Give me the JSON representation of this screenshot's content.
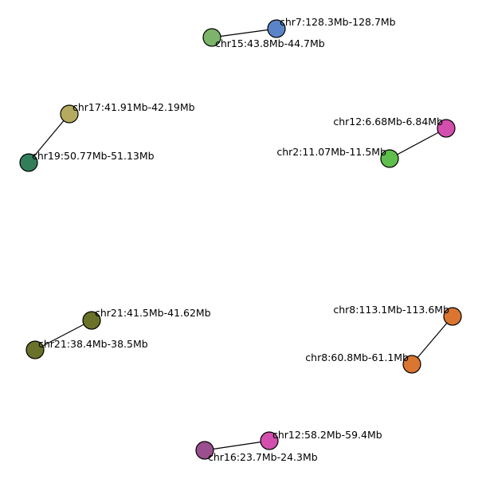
{
  "nodes": [
    {
      "id": "n1",
      "label": "chr7:128.3Mb-128.7Mb",
      "color": "#5b84c8"
    },
    {
      "id": "n2",
      "label": "chr15:43.8Mb-44.7Mb",
      "color": "#7cb46a"
    },
    {
      "id": "n3",
      "label": "chr17:41.91Mb-42.19Mb",
      "color": "#b5ab60"
    },
    {
      "id": "n4",
      "label": "chr19:50.77Mb-51.13Mb",
      "color": "#337e5a"
    },
    {
      "id": "n5",
      "label": "chr12:6.68Mb-6.84Mb",
      "color": "#d24fae"
    },
    {
      "id": "n6",
      "label": "chr2:11.07Mb-11.5Mb",
      "color": "#5fbe4c"
    },
    {
      "id": "n7",
      "label": "chr21:41.5Mb-41.62Mb",
      "color": "#6a7129"
    },
    {
      "id": "n8",
      "label": "chr21:38.4Mb-38.5Mb",
      "color": "#6a7129"
    },
    {
      "id": "n9",
      "label": "chr8:113.1Mb-113.6Mb",
      "color": "#da7532"
    },
    {
      "id": "n10",
      "label": "chr8:60.8Mb-61.1Mb",
      "color": "#da7532"
    },
    {
      "id": "n11",
      "label": "chr12:58.2Mb-59.4Mb",
      "color": "#d24fae"
    },
    {
      "id": "n12",
      "label": "chr16:23.7Mb-24.3Mb",
      "color": "#9a4f8e"
    }
  ],
  "edges": [
    [
      "n1",
      "n2"
    ],
    [
      "n3",
      "n4"
    ],
    [
      "n5",
      "n6"
    ],
    [
      "n7",
      "n8"
    ],
    [
      "n9",
      "n10"
    ],
    [
      "n11",
      "n12"
    ]
  ]
}
